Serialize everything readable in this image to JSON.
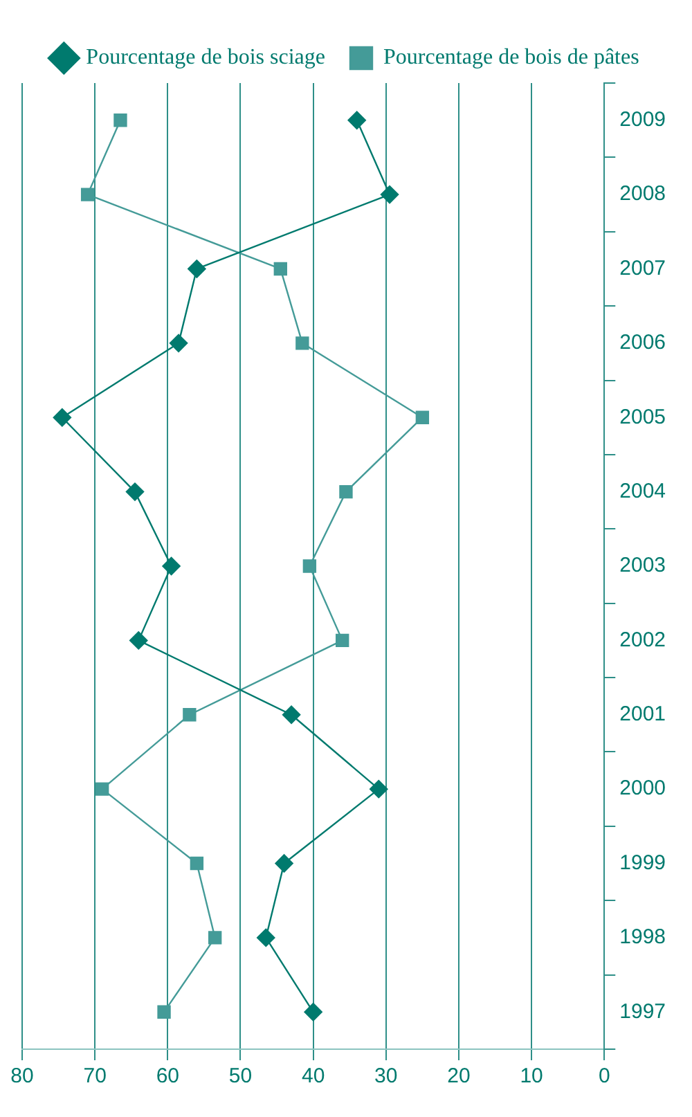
{
  "chart_data": {
    "type": "line",
    "categories": [
      "2009",
      "2008",
      "2007",
      "2006",
      "2005",
      "2004",
      "2003",
      "2002",
      "2001",
      "2000",
      "1999",
      "1998",
      "1997"
    ],
    "series": [
      {
        "name": "Pourcentage de bois sciage",
        "color": "#007a6e",
        "marker": "diamond",
        "values": [
          34,
          29.5,
          56,
          58.5,
          74.5,
          64.5,
          59.5,
          64,
          43,
          31,
          44,
          46.5,
          40
        ]
      },
      {
        "name": "Pourcentage de bois de pâtes",
        "color": "#449b98",
        "marker": "square",
        "values": [
          66.5,
          71,
          44.5,
          41.5,
          25,
          35.5,
          40.5,
          36,
          57,
          69,
          56,
          53.5,
          60.5
        ]
      }
    ],
    "orientation": "horizontal",
    "xlim": [
      80,
      0
    ],
    "xticks": [
      0,
      10,
      20,
      30,
      40,
      50,
      60,
      70,
      80
    ],
    "grid": "x",
    "legend": "top"
  }
}
